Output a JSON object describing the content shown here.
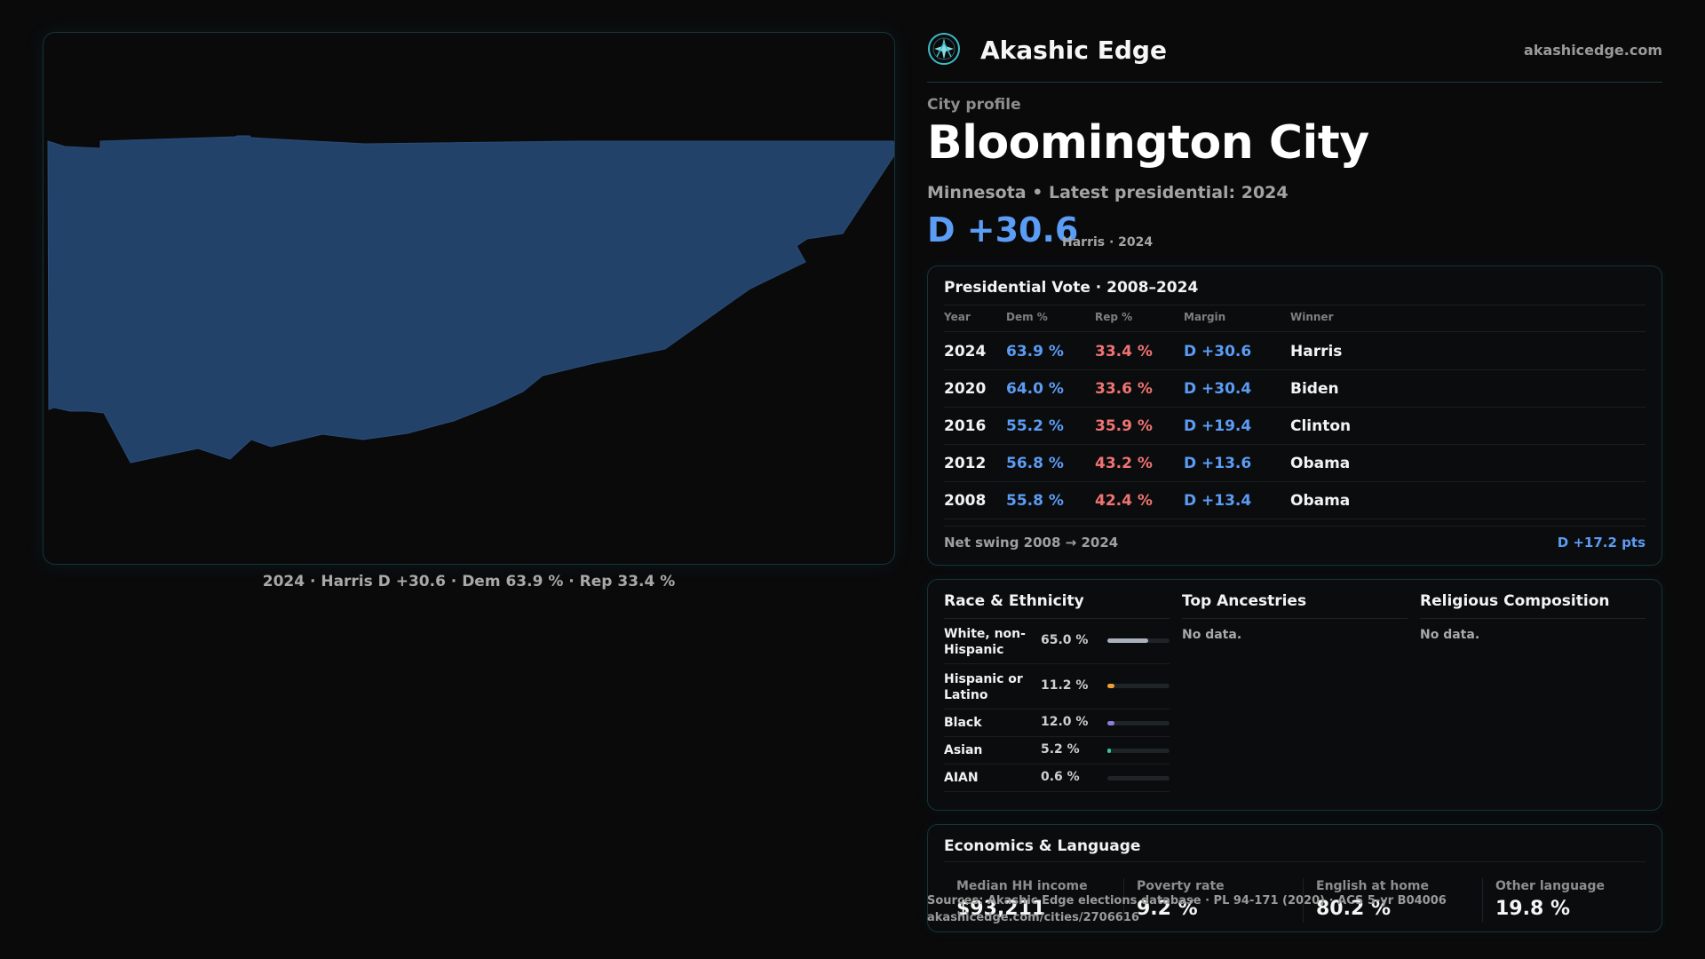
{
  "brand": {
    "name": "Akashic Edge",
    "site": "akashicedge.com",
    "logo_icon": "sparkle-circle-icon",
    "accent": "#3fb8c4"
  },
  "map": {
    "caption": "2024 · Harris D +30.6 · Dem 63.9 % · Rep 33.4 %",
    "fill_color": "#23426a"
  },
  "profile": {
    "eyebrow": "City profile",
    "title": "Bloomington City",
    "subline": "Minnesota • Latest presidential: 2024",
    "margin": "D +30.6",
    "margin_note": "Harris · 2024"
  },
  "vote": {
    "title": "Presidential Vote · 2008–2024",
    "columns": {
      "year": "Year",
      "dem": "Dem %",
      "rep": "Rep %",
      "margin": "Margin",
      "winner": "Winner"
    },
    "rows": [
      {
        "year": "2024",
        "dem": "63.9 %",
        "rep": "33.4 %",
        "margin": "D +30.6",
        "winner": "Harris"
      },
      {
        "year": "2020",
        "dem": "64.0 %",
        "rep": "33.6 %",
        "margin": "D +30.4",
        "winner": "Biden"
      },
      {
        "year": "2016",
        "dem": "55.2 %",
        "rep": "35.9 %",
        "margin": "D +19.4",
        "winner": "Clinton"
      },
      {
        "year": "2012",
        "dem": "56.8 %",
        "rep": "43.2 %",
        "margin": "D +13.6",
        "winner": "Obama"
      },
      {
        "year": "2008",
        "dem": "55.8 %",
        "rep": "42.4 %",
        "margin": "D +13.4",
        "winner": "Obama"
      }
    ],
    "swing_label": "Net swing 2008 → 2024",
    "swing_value": "D +17.2 pts",
    "dem_color": "#5b9cf5",
    "rep_color": "#f07373"
  },
  "race": {
    "title": "Race & Ethnicity",
    "rows": [
      {
        "label": "White, non-Hispanic",
        "pct": "65.0 %",
        "value": 0.65,
        "color": "#aab0bd"
      },
      {
        "label": "Hispanic or Latino",
        "pct": "11.2 %",
        "value": 0.112,
        "color": "#f0a030"
      },
      {
        "label": "Black",
        "pct": "12.0 %",
        "value": 0.12,
        "color": "#8c7fd8"
      },
      {
        "label": "Asian",
        "pct": "5.2 %",
        "value": 0.052,
        "color": "#2ec99a"
      },
      {
        "label": "AIAN",
        "pct": "0.6 %",
        "value": 0.006,
        "color": "#c8764a"
      }
    ]
  },
  "ancestries": {
    "title": "Top Ancestries",
    "empty": "No data."
  },
  "religion": {
    "title": "Religious Composition",
    "empty": "No data."
  },
  "economics": {
    "title": "Economics & Language",
    "stats": [
      {
        "label": "Median HH income",
        "value": "$93,211"
      },
      {
        "label": "Poverty rate",
        "value": "9.2 %"
      },
      {
        "label": "English at home",
        "value": "80.2 %"
      },
      {
        "label": "Other language",
        "value": "19.8 %"
      }
    ]
  },
  "source": {
    "line1": "Sources: Akashic Edge elections database · PL 94-171 (2020) · ACS 5-yr B04006",
    "line2": "akashicedge.com/cities/2706616"
  }
}
